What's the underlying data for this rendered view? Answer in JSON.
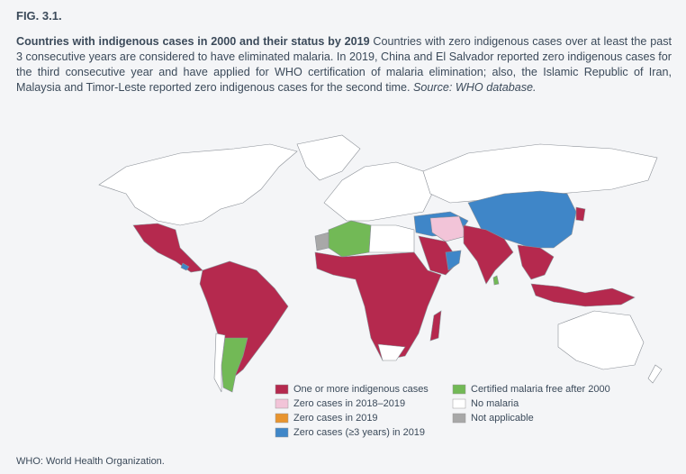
{
  "figure_label": "FIG. 3.1.",
  "caption": {
    "bold": "Countries with indigenous cases in 2000 and their status by 2019",
    "text": " Countries with zero indigenous cases over at least the past 3 consecutive years are considered to have eliminated malaria. In 2019, China and El Salvador reported zero indigenous cases for the third consecutive year and have applied for WHO certification of malaria elimination; also, the Islamic Republic of Iran, Malaysia and Timor-Leste reported zero indigenous cases for the second time. ",
    "source": "Source: WHO database."
  },
  "legend": [
    {
      "label": "One or more indigenous cases",
      "color": "#b5294e"
    },
    {
      "label": "Zero cases in 2018–2019",
      "color": "#f2c4d8"
    },
    {
      "label": "Zero cases in 2019",
      "color": "#e8942f"
    },
    {
      "label": "Zero cases (≥3 years) in 2019",
      "color": "#3f86c8"
    },
    {
      "label": "Certified malaria free after 2000",
      "color": "#72b956"
    },
    {
      "label": "No malaria",
      "color": "#ffffff"
    },
    {
      "label": "Not applicable",
      "color": "#a8a8a8"
    }
  ],
  "footnote": "WHO: World Health Organization."
}
